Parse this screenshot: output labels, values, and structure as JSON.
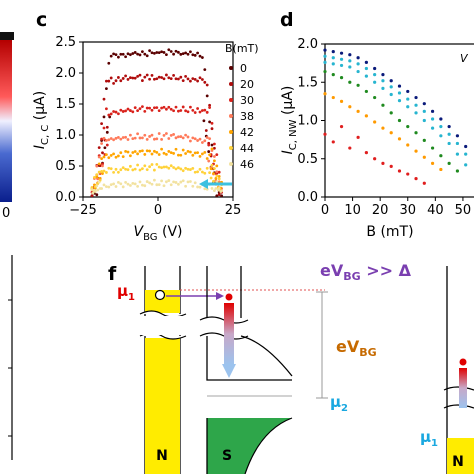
{
  "panel_labels": {
    "c": "c",
    "d": "d",
    "f": "f"
  },
  "colors": {
    "series": [
      "#5a0000",
      "#b00d0d",
      "#d9221c",
      "#ff7a5a",
      "#ffa500",
      "#ffd23a",
      "#f2e2a0"
    ],
    "series_d": [
      "#0a1a7a",
      "#27b5d0",
      "#27b5d0",
      "#1f8a1f",
      "#ff9a00",
      "#e01e1e"
    ],
    "N_fill": "#ffec00",
    "S_fill": "#2ea64a",
    "mu1": "#e00000",
    "mu2": "#1aa8e0",
    "arrow_purple": "#7a3fb0",
    "eVBG": "#c66a00"
  },
  "chart_data": [
    {
      "panel": "c",
      "type": "scatter",
      "xlabel_main": "V",
      "xlabel_sub": "BG",
      "xlabel_unit": " (V)",
      "ylabel_main": "I",
      "ylabel_sub": "C, C",
      "ylabel_unit": " (μA)",
      "xlim": [
        -25,
        25
      ],
      "ylim": [
        0,
        2.5
      ],
      "xticks": [
        -25,
        0,
        25
      ],
      "yticks": [
        0.0,
        0.5,
        1.0,
        1.5,
        2.0,
        2.5
      ],
      "xtick_labels": [
        "−25",
        "0",
        "25"
      ],
      "ytick_labels": [
        "0.0",
        "0.5",
        "1.0",
        "1.5",
        "2.0",
        "2.5"
      ],
      "legend_title": "B(mT)",
      "legend_position": "right",
      "series": [
        {
          "name": "0",
          "plateau": 2.33,
          "left_edge": -16,
          "right_edge": 15
        },
        {
          "name": "20",
          "plateau": 1.93,
          "left_edge": -17,
          "right_edge": 16
        },
        {
          "name": "30",
          "plateau": 1.43,
          "left_edge": -17,
          "right_edge": 17
        },
        {
          "name": "38",
          "plateau": 0.98,
          "left_edge": -18,
          "right_edge": 17
        },
        {
          "name": "42",
          "plateau": 0.73,
          "left_edge": -18,
          "right_edge": 18
        },
        {
          "name": "44",
          "plateau": 0.48,
          "left_edge": -19,
          "right_edge": 18
        },
        {
          "name": "46",
          "plateau": 0.23,
          "left_edge": -19,
          "right_edge": 19
        }
      ]
    },
    {
      "panel": "d",
      "type": "scatter",
      "xlabel": "B (mT)",
      "ylabel_main": "I",
      "ylabel_sub": "C, NW",
      "ylabel_unit": " (μA)",
      "xlim": [
        0,
        58
      ],
      "ylim": [
        0,
        2.0
      ],
      "xticks": [
        0,
        10,
        20,
        30,
        40,
        50
      ],
      "yticks": [
        0.0,
        0.5,
        1.0,
        1.5,
        2.0
      ],
      "xtick_labels": [
        "0",
        "10",
        "20",
        "30",
        "40",
        "50"
      ],
      "ytick_labels": [
        "0.0",
        "0.5",
        "1.0",
        "1.5",
        "2.0"
      ],
      "corner_label": "V",
      "series": [
        {
          "x": [
            0,
            3,
            6,
            9,
            12,
            15,
            18,
            21,
            24,
            27,
            30,
            33,
            36,
            39,
            42,
            45,
            48,
            51,
            54,
            57
          ],
          "y": [
            1.92,
            1.9,
            1.88,
            1.86,
            1.82,
            1.76,
            1.68,
            1.6,
            1.52,
            1.45,
            1.38,
            1.3,
            1.22,
            1.12,
            1.02,
            0.92,
            0.8,
            0.66,
            0.5,
            0.34
          ]
        },
        {
          "x": [
            0,
            3,
            6,
            9,
            12,
            15,
            18,
            21,
            24,
            27,
            30,
            33,
            36,
            39,
            42,
            45,
            48,
            51,
            54,
            57
          ],
          "y": [
            1.84,
            1.82,
            1.8,
            1.78,
            1.74,
            1.68,
            1.6,
            1.52,
            1.44,
            1.36,
            1.28,
            1.2,
            1.12,
            1.02,
            0.92,
            0.82,
            0.7,
            0.56,
            0.42,
            0.28
          ]
        },
        {
          "x": [
            0,
            3,
            6,
            9,
            12,
            15,
            18,
            21,
            24,
            27,
            30,
            33,
            36,
            39,
            42,
            45,
            48,
            51,
            54
          ],
          "y": [
            1.76,
            1.74,
            1.72,
            1.7,
            1.64,
            1.58,
            1.5,
            1.42,
            1.34,
            1.26,
            1.18,
            1.1,
            1.0,
            0.9,
            0.8,
            0.7,
            0.56,
            0.42,
            0.3
          ]
        },
        {
          "x": [
            0,
            3,
            6,
            9,
            12,
            15,
            18,
            21,
            24,
            27,
            30,
            33,
            36,
            39,
            42,
            45,
            48
          ],
          "y": [
            1.64,
            1.6,
            1.56,
            1.5,
            1.46,
            1.38,
            1.3,
            1.2,
            1.1,
            1.0,
            0.92,
            0.84,
            0.74,
            0.64,
            0.54,
            0.44,
            0.34
          ]
        },
        {
          "x": [
            0,
            3,
            6,
            9,
            12,
            15,
            18,
            21,
            24,
            27,
            30,
            33,
            36,
            39,
            42
          ],
          "y": [
            1.35,
            1.3,
            1.25,
            1.18,
            1.12,
            1.06,
            0.98,
            0.9,
            0.84,
            0.76,
            0.68,
            0.6,
            0.52,
            0.44,
            0.36
          ]
        },
        {
          "x": [
            0,
            3,
            6,
            9,
            12,
            15,
            18,
            21,
            24,
            27,
            30,
            33,
            36
          ],
          "y": [
            0.82,
            0.72,
            0.92,
            0.64,
            0.78,
            0.58,
            0.5,
            0.44,
            0.4,
            0.34,
            0.3,
            0.24,
            0.18
          ]
        }
      ]
    }
  ],
  "panel_f": {
    "title_main": "eV",
    "title_sub": "BG",
    "title_tail": " >> Δ",
    "mu1_main": "μ",
    "mu1_sub": "1",
    "mu2_main": "μ",
    "mu2_sub": "2",
    "mu1_right_main": "μ",
    "mu1_right_sub": "1",
    "ev_main": "eV",
    "ev_sub": "BG",
    "N_label": "N",
    "S_label": "S",
    "N_label_right": "N"
  },
  "left_axis": {
    "tick_label": "0"
  }
}
